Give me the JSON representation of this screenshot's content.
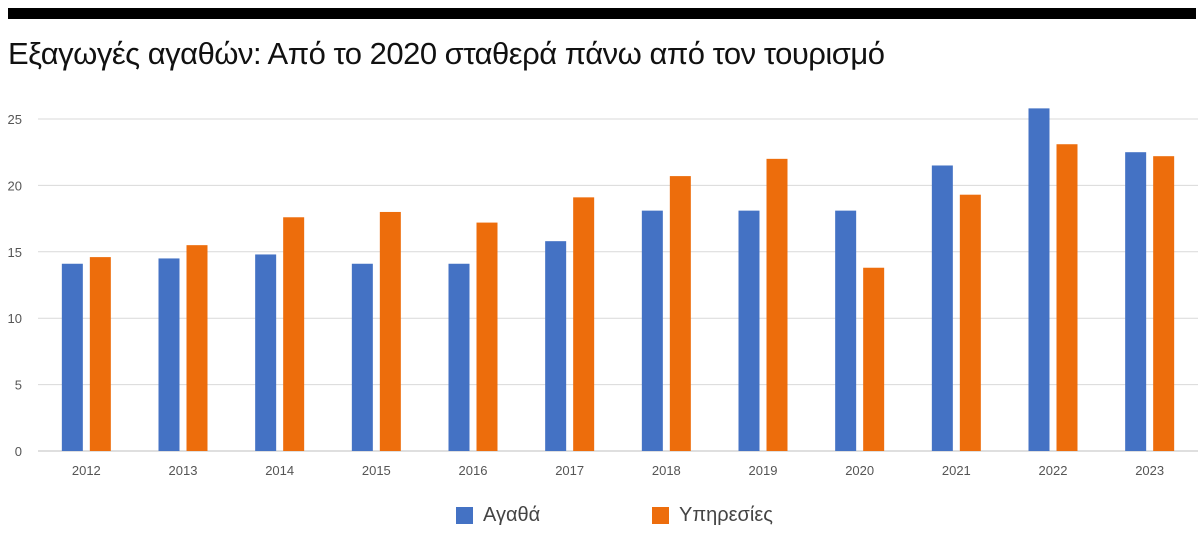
{
  "title": "Εξαγωγές αγαθών: Από το 2020 σταθερά πάνω από τον τουρισμό",
  "colors": {
    "goods": "#4472C4",
    "services": "#ED6D0C",
    "grid": "#D9D9D9"
  },
  "chart_data": {
    "type": "bar",
    "title": "Εξαγωγές αγαθών: Από το 2020 σταθερά πάνω από τον τουρισμό",
    "xlabel": "",
    "ylabel": "",
    "ylim": [
      0,
      25
    ],
    "yticks": [
      "0",
      "5",
      "10",
      "15",
      "20",
      "25"
    ],
    "grid": true,
    "legend": "bottom-center",
    "categories": [
      "2012",
      "2013",
      "2014",
      "2015",
      "2016",
      "2017",
      "2018",
      "2019",
      "2020",
      "2021",
      "2022",
      "2023"
    ],
    "series": [
      {
        "name": "Αγαθά",
        "color": "#4472C4",
        "values": [
          14.1,
          14.5,
          14.8,
          14.1,
          14.1,
          15.8,
          18.1,
          18.1,
          18.1,
          21.5,
          25.8,
          22.5
        ]
      },
      {
        "name": "Υπηρεσίες",
        "color": "#ED6D0C",
        "values": [
          14.6,
          15.5,
          17.6,
          18.0,
          17.2,
          19.1,
          20.7,
          22.0,
          13.8,
          19.3,
          23.1,
          22.2
        ]
      }
    ]
  }
}
